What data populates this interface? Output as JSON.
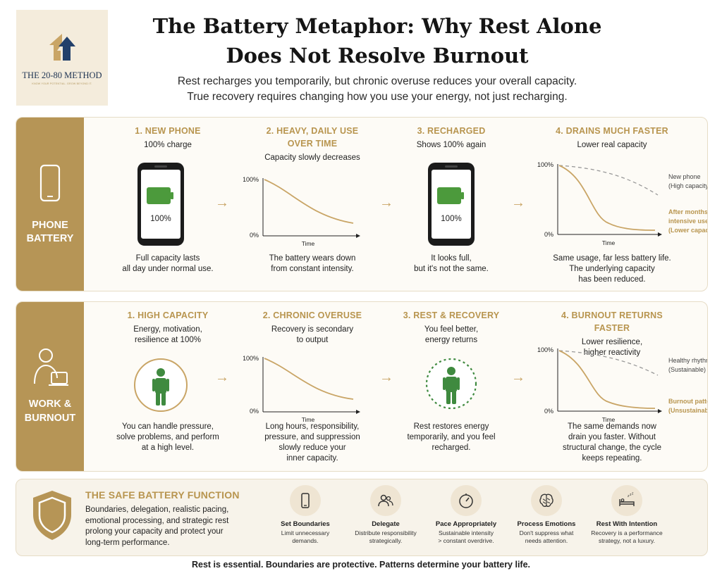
{
  "logo": {
    "name": "THE 20-80 METHOD",
    "tagline": "KNOW YOUR POTENTIAL. GROW BEYOND IT."
  },
  "title": {
    "line1": "The Battery Metaphor: Why Rest Alone",
    "line2": "Does Not Resolve Burnout"
  },
  "subtitle": {
    "line1": "Rest recharges you temporarily, but chronic overuse reduces your overall capacity.",
    "line2": "True recovery requires changing how you use your energy, not just recharging."
  },
  "colors": {
    "gold": "#b69556",
    "accent_text": "#b8954f",
    "battery_green": "#4c9a3c",
    "figure_green": "#3f8a3f"
  },
  "phone_row": {
    "label_line1": "PHONE",
    "label_line2": "BATTERY",
    "icon": "phone-icon",
    "steps": [
      {
        "title_line1": "1. NEW PHONE",
        "title_line2": "",
        "sub_line1": "100% charge",
        "sub_line2": "",
        "screen_value": "100%",
        "desc_line1": "Full capacity lasts",
        "desc_line2": "all day under normal use.",
        "desc_line3": ""
      },
      {
        "title_line1": "2. HEAVY, DAILY USE",
        "title_line2": "OVER TIME",
        "sub_line1": "Capacity slowly decreases",
        "sub_line2": "",
        "desc_line1": "The battery wears down",
        "desc_line2": "from constant intensity.",
        "desc_line3": ""
      },
      {
        "title_line1": "3. RECHARGED",
        "title_line2": "",
        "sub_line1": "Shows 100% again",
        "sub_line2": "",
        "screen_value": "100%",
        "desc_line1": "It looks full,",
        "desc_line2": "but it's not the same.",
        "desc_line3": ""
      },
      {
        "title_line1": "4. DRAINS MUCH FASTER",
        "title_line2": "",
        "sub_line1": "Lower real capacity",
        "sub_line2": "",
        "desc_line1": "Same usage, far less battery life.",
        "desc_line2": "The underlying capacity",
        "desc_line3": "has been reduced."
      }
    ],
    "charts": {
      "simple": {
        "ymax": "100%",
        "ymin": "0%",
        "xlabel": "Time"
      },
      "compare": {
        "ymax": "100%",
        "ymin": "0%",
        "xlabel": "Time",
        "series": [
          {
            "name_line1": "New phone",
            "name_line2": "(High capacity)",
            "style": "dashed-gray"
          },
          {
            "name_line1": "After months of",
            "name_line2": "intensive use",
            "name_line3": "(Lower capacity)",
            "style": "solid-gold"
          }
        ]
      }
    }
  },
  "work_row": {
    "label_line1": "WORK &",
    "label_line2": "BURNOUT",
    "icon": "person-at-laptop-icon",
    "steps": [
      {
        "title_line1": "1. HIGH CAPACITY",
        "sub_line1": "Energy, motivation,",
        "sub_line2": "resilience at 100%",
        "desc_line1": "You can handle pressure,",
        "desc_line2": "solve problems, and perform",
        "desc_line3": "at a high level.",
        "desc_line4": ""
      },
      {
        "title_line1": "2. CHRONIC OVERUSE",
        "sub_line1": "Recovery is secondary",
        "sub_line2": "to output",
        "desc_line1": "Long hours, responsibility,",
        "desc_line2": "pressure, and suppression",
        "desc_line3": "slowly reduce your",
        "desc_line4": "inner capacity."
      },
      {
        "title_line1": "3. REST & RECOVERY",
        "sub_line1": "You feel better,",
        "sub_line2": "energy returns",
        "desc_line1": "Rest restores energy",
        "desc_line2": "temporarily, and you feel",
        "desc_line3": "recharged.",
        "desc_line4": ""
      },
      {
        "title_line1": "4. BURNOUT RETURNS FASTER",
        "sub_line1": "Lower resilience,",
        "sub_line2": "higher reactivity",
        "desc_line1": "The same demands now",
        "desc_line2": "drain you faster. Without",
        "desc_line3": "structural change, the cycle",
        "desc_line4": "keeps repeating."
      }
    ],
    "charts": {
      "simple": {
        "ymax": "100%",
        "ymin": "0%",
        "xlabel": "Time"
      },
      "compare": {
        "ymax": "100%",
        "ymin": "0%",
        "xlabel": "Time",
        "series": [
          {
            "name_line1": "Healthy rhythm",
            "name_line2": "(Sustainable)",
            "style": "dashed-gray"
          },
          {
            "name_line1": "Burnout pattern",
            "name_line2": "(Unsustainable)",
            "style": "solid-gold"
          }
        ]
      }
    }
  },
  "safe_battery": {
    "title": "THE SAFE BATTERY FUNCTION",
    "icon": "shield-icon",
    "body_line1": "Boundaries, delegation, realistic pacing,",
    "body_line2": "emotional processing, and strategic rest",
    "body_line3": "prolong your capacity and protect your",
    "body_line4": "long-term performance.",
    "tips": [
      {
        "icon": "phone-outline-icon",
        "title": "Set Boundaries",
        "line1": "Limit unnecessary",
        "line2": "demands."
      },
      {
        "icon": "people-icon",
        "title": "Delegate",
        "line1": "Distribute responsibility",
        "line2": "strategically."
      },
      {
        "icon": "gauge-icon",
        "title": "Pace Appropriately",
        "line1": "Sustainable intensity",
        "line2": "> constant overdrive."
      },
      {
        "icon": "brain-icon",
        "title": "Process Emotions",
        "line1": "Don't suppress what",
        "line2": "needs attention."
      },
      {
        "icon": "sleep-bed-icon",
        "title": "Rest With Intention",
        "line1": "Recovery is a performance",
        "line2": "strategy, not a luxury."
      }
    ]
  },
  "footer": "Rest is essential. Boundaries are protective. Patterns determine your battery life."
}
